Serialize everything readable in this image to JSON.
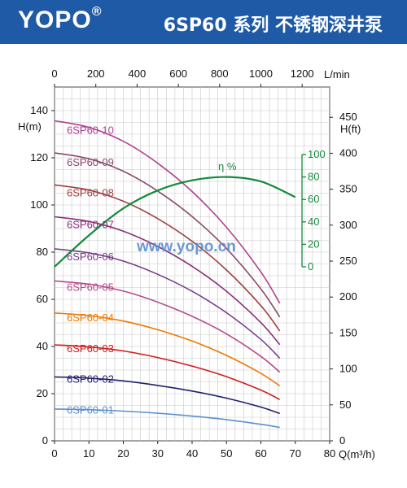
{
  "header": {
    "brand": "YOPO",
    "brand_mark": "®",
    "title": "6SP60 系列 不锈钢深井泵"
  },
  "watermark": "www.yopo.cn",
  "colors": {
    "banner": "#1f5aa6",
    "efficiency": "#138a3c",
    "grid": "#c8c8c8",
    "curves": [
      "#5b8fd0",
      "#1f1f6e",
      "#d21c1c",
      "#f07800",
      "#b64b8c",
      "#7a3e8a",
      "#8a2f7a",
      "#a04040",
      "#8b4a6b",
      "#b04090"
    ]
  },
  "chart_data": {
    "type": "line",
    "title": "",
    "xlabel": "Q(m³/h)",
    "ylabel": "H(m)",
    "x2label": "L/min",
    "y2label": "H(ft)",
    "efficiency_label": "η %",
    "xlim": [
      0,
      80
    ],
    "ylim": [
      0,
      150
    ],
    "x_ticks": [
      "0",
      "10",
      "20",
      "30",
      "40",
      "50",
      "60",
      "70",
      "80"
    ],
    "y_ticks": [
      "0",
      "20",
      "40",
      "60",
      "80",
      "100",
      "120",
      "140"
    ],
    "x2_ticks": [
      "0",
      "200",
      "400",
      "600",
      "800",
      "1000",
      "1200"
    ],
    "y2_ticks": [
      "0",
      "50",
      "100",
      "150",
      "200",
      "250",
      "300",
      "350",
      "400",
      "450"
    ],
    "eff_ticks": [
      "0",
      "20",
      "40",
      "60",
      "80",
      "100"
    ],
    "grid": true,
    "series": [
      {
        "name": "6SP60-01",
        "x": [
          0,
          10,
          20,
          30,
          40,
          50,
          60,
          65.5
        ],
        "y": [
          13.5,
          13.2,
          12.6,
          11.7,
          10.5,
          9.0,
          7.0,
          5.7
        ]
      },
      {
        "name": "6SP60-02",
        "x": [
          0,
          10,
          20,
          30,
          40,
          50,
          60,
          65.5
        ],
        "y": [
          27.1,
          26.6,
          25.4,
          23.5,
          21.1,
          18.1,
          14.3,
          11.6
        ]
      },
      {
        "name": "6SP60-03",
        "x": [
          0,
          10,
          20,
          30,
          40,
          50,
          60,
          65.5
        ],
        "y": [
          40.7,
          39.8,
          38.1,
          35.3,
          31.7,
          27.2,
          21.5,
          17.5
        ]
      },
      {
        "name": "6SP60-04",
        "x": [
          0,
          10,
          20,
          30,
          40,
          50,
          60,
          65.5
        ],
        "y": [
          54.2,
          53.1,
          50.8,
          47.1,
          42.3,
          36.2,
          28.6,
          23.3
        ]
      },
      {
        "name": "6SP60-05",
        "x": [
          0,
          10,
          20,
          30,
          40,
          50,
          60,
          65.5
        ],
        "y": [
          67.8,
          66.4,
          63.5,
          58.8,
          52.8,
          45.3,
          35.8,
          29.1
        ]
      },
      {
        "name": "6SP60-06",
        "x": [
          0,
          10,
          20,
          30,
          40,
          50,
          60,
          65.5
        ],
        "y": [
          81.4,
          79.7,
          76.2,
          70.6,
          63.4,
          54.3,
          43.0,
          35.0
        ]
      },
      {
        "name": "6SP60-07",
        "x": [
          0,
          10,
          20,
          30,
          40,
          50,
          60,
          65.5
        ],
        "y": [
          95.0,
          93.0,
          88.9,
          82.4,
          74.0,
          63.4,
          50.1,
          40.8
        ]
      },
      {
        "name": "6SP60-08",
        "x": [
          0,
          10,
          20,
          30,
          40,
          50,
          60,
          65.5
        ],
        "y": [
          108.5,
          106.3,
          101.6,
          94.2,
          84.6,
          72.4,
          57.3,
          46.6
        ]
      },
      {
        "name": "6SP60-09",
        "x": [
          0,
          10,
          20,
          30,
          40,
          50,
          60,
          65.5
        ],
        "y": [
          122.1,
          119.6,
          114.3,
          105.9,
          95.1,
          81.5,
          64.4,
          52.5
        ]
      },
      {
        "name": "6SP60-10",
        "x": [
          0,
          10,
          20,
          30,
          40,
          50,
          60,
          65.5
        ],
        "y": [
          135.7,
          132.9,
          127.0,
          117.7,
          105.7,
          90.5,
          71.6,
          58.3
        ]
      }
    ],
    "efficiency": {
      "x": [
        0,
        10,
        20,
        30,
        40,
        50,
        60,
        70
      ],
      "y": [
        0,
        28,
        52,
        68,
        77,
        80,
        76,
        62
      ]
    },
    "label_y": [
      13.0,
      26.0,
      39.0,
      52.0,
      65.0,
      78.0,
      91.5,
      105.0,
      118.0,
      131.5
    ]
  }
}
